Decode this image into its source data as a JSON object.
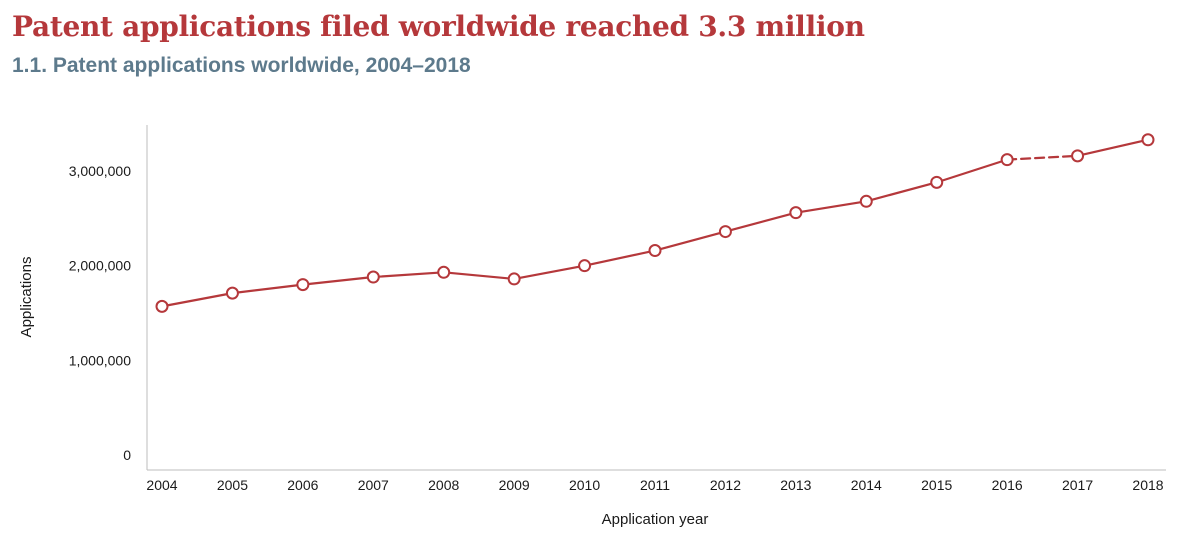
{
  "header": {
    "title": "Patent applications filed worldwide reached 3.3 million",
    "subtitle": "1.1. Patent applications worldwide, 2004–2018"
  },
  "colors": {
    "accent": "#b5383b",
    "subtitle": "#5d7a8c",
    "axis": "#bdbdbd"
  },
  "chart_data": {
    "type": "line",
    "title": "1.1. Patent applications worldwide, 2004–2018",
    "xlabel": "Application year",
    "ylabel": "Applications",
    "ylim": [
      0,
      3500000
    ],
    "yticks": [
      {
        "value": 0,
        "label": "0"
      },
      {
        "value": 1000000,
        "label": "1,000,000"
      },
      {
        "value": 2000000,
        "label": "2,000,000"
      },
      {
        "value": 3000000,
        "label": "3,000,000"
      }
    ],
    "categories": [
      "2004",
      "2005",
      "2006",
      "2007",
      "2008",
      "2009",
      "2010",
      "2011",
      "2012",
      "2013",
      "2014",
      "2015",
      "2016",
      "2017",
      "2018"
    ],
    "series": [
      {
        "values": [
          1570000,
          1710000,
          1800000,
          1880000,
          1930000,
          1860000,
          2000000,
          2160000,
          2360000,
          2560000,
          2680000,
          2880000,
          3120000,
          3160000,
          3330000
        ],
        "dashed_segments": [
          [
            12,
            13
          ]
        ]
      }
    ],
    "grid": false,
    "legend": "none"
  }
}
